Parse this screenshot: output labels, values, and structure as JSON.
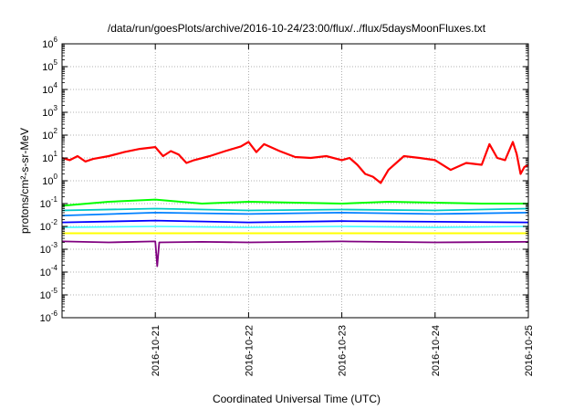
{
  "chart_data": {
    "type": "line",
    "title": "/data/run/goesPlots/archive/2016-10-24/23:00/flux/../flux/5daysMoonFluxes.txt",
    "xlabel": "Coordinated Universal Time (UTC)",
    "ylabel": "protons/cm²-s-sr-MeV",
    "y_scale": "log",
    "ylim": [
      1e-06,
      1000000.0
    ],
    "xlim": [
      "2016-10-20 00:00",
      "2016-10-25 00:00"
    ],
    "x_ticks": [
      "2016-10-21",
      "2016-10-22",
      "2016-10-23",
      "2016-10-24",
      "2016-10-25"
    ],
    "y_ticks": [
      {
        "base": "10",
        "exp": "-6"
      },
      {
        "base": "10",
        "exp": "-5"
      },
      {
        "base": "10",
        "exp": "-4"
      },
      {
        "base": "10",
        "exp": "-3"
      },
      {
        "base": "10",
        "exp": "-2"
      },
      {
        "base": "10",
        "exp": "-1"
      },
      {
        "base": "10",
        "exp": "0"
      },
      {
        "base": "10",
        "exp": "1"
      },
      {
        "base": "10",
        "exp": "2"
      },
      {
        "base": "10",
        "exp": "3"
      },
      {
        "base": "10",
        "exp": "4"
      },
      {
        "base": "10",
        "exp": "5"
      },
      {
        "base": "10",
        "exp": "6"
      }
    ],
    "grid": true,
    "legend": "none",
    "series": [
      {
        "color": "#ff0000",
        "width": 2.2,
        "values": [
          {
            "x": "2016-10-20 00:00",
            "y": 10
          },
          {
            "x": "2016-10-20 02:00",
            "y": 8
          },
          {
            "x": "2016-10-20 04:00",
            "y": 12
          },
          {
            "x": "2016-10-20 06:00",
            "y": 7
          },
          {
            "x": "2016-10-20 08:00",
            "y": 9
          },
          {
            "x": "2016-10-20 12:00",
            "y": 12
          },
          {
            "x": "2016-10-20 16:00",
            "y": 18
          },
          {
            "x": "2016-10-20 20:00",
            "y": 25
          },
          {
            "x": "2016-10-21 00:00",
            "y": 30
          },
          {
            "x": "2016-10-21 02:00",
            "y": 12
          },
          {
            "x": "2016-10-21 04:00",
            "y": 20
          },
          {
            "x": "2016-10-21 06:00",
            "y": 14
          },
          {
            "x": "2016-10-21 08:00",
            "y": 6
          },
          {
            "x": "2016-10-21 10:00",
            "y": 8
          },
          {
            "x": "2016-10-21 14:00",
            "y": 12
          },
          {
            "x": "2016-10-21 18:00",
            "y": 20
          },
          {
            "x": "2016-10-21 22:00",
            "y": 32
          },
          {
            "x": "2016-10-22 00:00",
            "y": 50
          },
          {
            "x": "2016-10-22 02:00",
            "y": 18
          },
          {
            "x": "2016-10-22 04:00",
            "y": 40
          },
          {
            "x": "2016-10-22 08:00",
            "y": 20
          },
          {
            "x": "2016-10-22 12:00",
            "y": 11
          },
          {
            "x": "2016-10-22 16:00",
            "y": 10
          },
          {
            "x": "2016-10-22 20:00",
            "y": 12
          },
          {
            "x": "2016-10-23 00:00",
            "y": 8
          },
          {
            "x": "2016-10-23 02:00",
            "y": 10
          },
          {
            "x": "2016-10-23 04:00",
            "y": 5
          },
          {
            "x": "2016-10-23 06:00",
            "y": 2
          },
          {
            "x": "2016-10-23 08:00",
            "y": 1.5
          },
          {
            "x": "2016-10-23 10:00",
            "y": 0.8
          },
          {
            "x": "2016-10-23 12:00",
            "y": 3
          },
          {
            "x": "2016-10-23 14:00",
            "y": 6
          },
          {
            "x": "2016-10-23 16:00",
            "y": 12
          },
          {
            "x": "2016-10-23 20:00",
            "y": 10
          },
          {
            "x": "2016-10-24 00:00",
            "y": 8
          },
          {
            "x": "2016-10-24 04:00",
            "y": 3
          },
          {
            "x": "2016-10-24 08:00",
            "y": 6
          },
          {
            "x": "2016-10-24 12:00",
            "y": 5
          },
          {
            "x": "2016-10-24 14:00",
            "y": 40
          },
          {
            "x": "2016-10-24 16:00",
            "y": 10
          },
          {
            "x": "2016-10-24 18:00",
            "y": 8
          },
          {
            "x": "2016-10-24 20:00",
            "y": 50
          },
          {
            "x": "2016-10-24 21:00",
            "y": 15
          },
          {
            "x": "2016-10-24 22:00",
            "y": 2
          },
          {
            "x": "2016-10-24 23:00",
            "y": 4
          },
          {
            "x": "2016-10-25 00:00",
            "y": 5
          }
        ]
      },
      {
        "color": "#00ff00",
        "width": 2.0,
        "values": [
          {
            "x": "2016-10-20 00:00",
            "y": 0.08
          },
          {
            "x": "2016-10-20 12:00",
            "y": 0.12
          },
          {
            "x": "2016-10-21 00:00",
            "y": 0.15
          },
          {
            "x": "2016-10-21 12:00",
            "y": 0.1
          },
          {
            "x": "2016-10-22 00:00",
            "y": 0.12
          },
          {
            "x": "2016-10-22 12:00",
            "y": 0.11
          },
          {
            "x": "2016-10-23 00:00",
            "y": 0.1
          },
          {
            "x": "2016-10-23 12:00",
            "y": 0.12
          },
          {
            "x": "2016-10-24 00:00",
            "y": 0.11
          },
          {
            "x": "2016-10-24 12:00",
            "y": 0.1
          },
          {
            "x": "2016-10-25 00:00",
            "y": 0.1
          }
        ]
      },
      {
        "color": "#00c8c8",
        "width": 1.8,
        "values": [
          {
            "x": "2016-10-20 00:00",
            "y": 0.05
          },
          {
            "x": "2016-10-21 00:00",
            "y": 0.06
          },
          {
            "x": "2016-10-22 00:00",
            "y": 0.05
          },
          {
            "x": "2016-10-23 00:00",
            "y": 0.055
          },
          {
            "x": "2016-10-24 00:00",
            "y": 0.05
          },
          {
            "x": "2016-10-25 00:00",
            "y": 0.06
          }
        ]
      },
      {
        "color": "#0080ff",
        "width": 1.8,
        "values": [
          {
            "x": "2016-10-20 00:00",
            "y": 0.03
          },
          {
            "x": "2016-10-21 00:00",
            "y": 0.04
          },
          {
            "x": "2016-10-22 00:00",
            "y": 0.035
          },
          {
            "x": "2016-10-23 00:00",
            "y": 0.04
          },
          {
            "x": "2016-10-24 00:00",
            "y": 0.035
          },
          {
            "x": "2016-10-25 00:00",
            "y": 0.04
          }
        ]
      },
      {
        "color": "#0000ff",
        "width": 1.8,
        "values": [
          {
            "x": "2016-10-20 00:00",
            "y": 0.015
          },
          {
            "x": "2016-10-21 00:00",
            "y": 0.018
          },
          {
            "x": "2016-10-22 00:00",
            "y": 0.015
          },
          {
            "x": "2016-10-23 00:00",
            "y": 0.017
          },
          {
            "x": "2016-10-24 00:00",
            "y": 0.016
          },
          {
            "x": "2016-10-25 00:00",
            "y": 0.015
          }
        ]
      },
      {
        "color": "#40ffff",
        "width": 1.6,
        "values": [
          {
            "x": "2016-10-20 00:00",
            "y": 0.009
          },
          {
            "x": "2016-10-21 00:00",
            "y": 0.01
          },
          {
            "x": "2016-10-22 00:00",
            "y": 0.009
          },
          {
            "x": "2016-10-23 00:00",
            "y": 0.01
          },
          {
            "x": "2016-10-24 00:00",
            "y": 0.009
          },
          {
            "x": "2016-10-25 00:00",
            "y": 0.01
          }
        ]
      },
      {
        "color": "#ffff00",
        "width": 2.0,
        "values": [
          {
            "x": "2016-10-20 00:00",
            "y": 0.005
          },
          {
            "x": "2016-10-21 00:00",
            "y": 0.005
          },
          {
            "x": "2016-10-22 00:00",
            "y": 0.005
          },
          {
            "x": "2016-10-23 00:00",
            "y": 0.005
          },
          {
            "x": "2016-10-24 00:00",
            "y": 0.005
          },
          {
            "x": "2016-10-25 00:00",
            "y": 0.005
          }
        ]
      },
      {
        "color": "#800080",
        "width": 1.8,
        "values": [
          {
            "x": "2016-10-20 00:00",
            "y": 0.0022
          },
          {
            "x": "2016-10-20 12:00",
            "y": 0.002
          },
          {
            "x": "2016-10-21 00:00",
            "y": 0.0022
          },
          {
            "x": "2016-10-21 00:30",
            "y": 0.00018
          },
          {
            "x": "2016-10-21 01:00",
            "y": 0.002
          },
          {
            "x": "2016-10-21 12:00",
            "y": 0.0021
          },
          {
            "x": "2016-10-22 00:00",
            "y": 0.002
          },
          {
            "x": "2016-10-23 00:00",
            "y": 0.0022
          },
          {
            "x": "2016-10-24 00:00",
            "y": 0.002
          },
          {
            "x": "2016-10-25 00:00",
            "y": 0.0021
          }
        ]
      }
    ]
  }
}
